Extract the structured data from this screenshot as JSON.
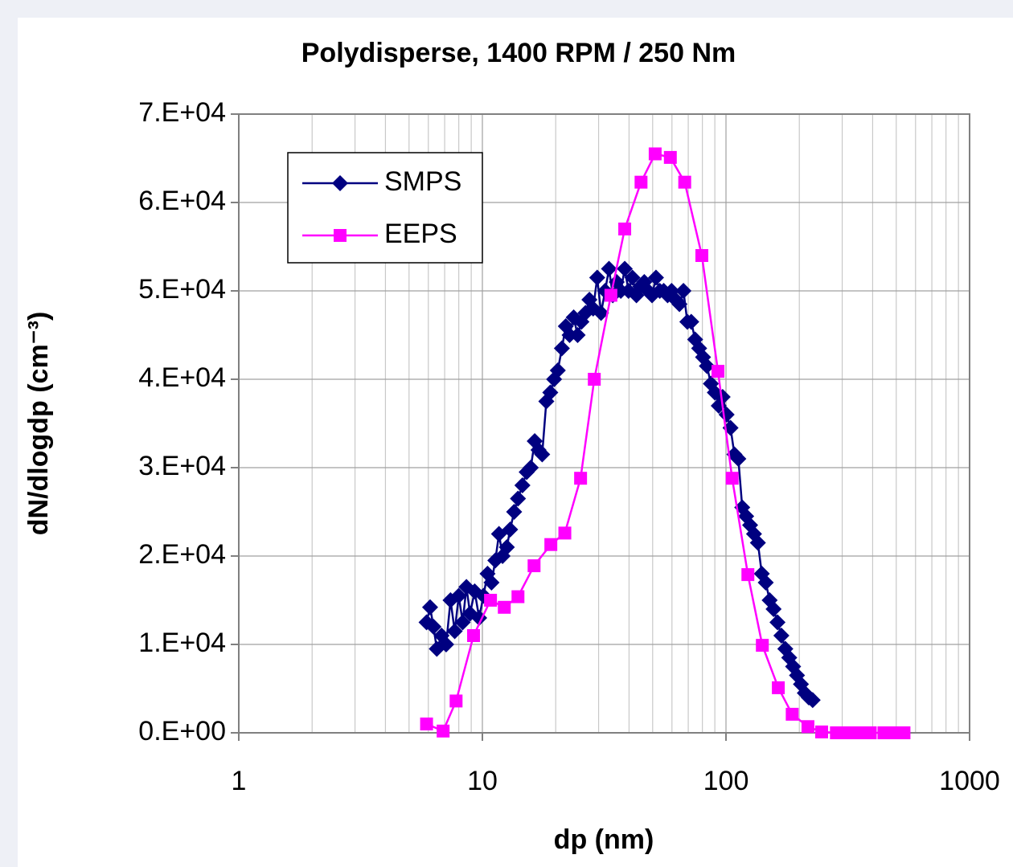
{
  "chart_data": {
    "type": "line",
    "title": "Polydisperse,  1400 RPM / 250 Nm",
    "xlabel": "dp (nm)",
    "ylabel": "dN/dlogdp (cm⁻³)",
    "xscale": "log",
    "xlim": [
      1,
      1000
    ],
    "xticks": [
      1,
      10,
      100,
      1000
    ],
    "ylim": [
      0,
      70000
    ],
    "yticks": [
      {
        "value": 0,
        "label": "0.E+00"
      },
      {
        "value": 10000,
        "label": "1.E+04"
      },
      {
        "value": 20000,
        "label": "2.E+04"
      },
      {
        "value": 30000,
        "label": "3.E+04"
      },
      {
        "value": 40000,
        "label": "4.E+04"
      },
      {
        "value": 50000,
        "label": "5.E+04"
      },
      {
        "value": 60000,
        "label": "6.E+04"
      },
      {
        "value": 70000,
        "label": "7.E+04"
      }
    ],
    "grid": true,
    "minor_grid": true,
    "legend": "upper left",
    "series": [
      {
        "name": "SMPS",
        "color": "#000080",
        "marker": "diamond",
        "x": [
          5.9,
          6.1,
          6.3,
          6.5,
          6.8,
          7.1,
          7.4,
          7.7,
          8.0,
          8.3,
          8.6,
          8.9,
          9.3,
          9.7,
          10.1,
          10.5,
          10.9,
          11.3,
          11.7,
          12.1,
          12.6,
          13.0,
          13.5,
          14.0,
          14.6,
          15.2,
          15.8,
          16.4,
          17.0,
          17.6,
          18.3,
          19.0,
          19.7,
          20.4,
          21.2,
          22.0,
          22.8,
          23.7,
          24.6,
          25.5,
          26.5,
          27.5,
          28.5,
          29.6,
          30.7,
          31.9,
          33.1,
          34.3,
          35.6,
          37.0,
          38.4,
          39.8,
          41.3,
          42.9,
          44.5,
          46.2,
          47.9,
          49.7,
          51.6,
          53.5,
          55.5,
          57.6,
          59.8,
          62.1,
          64.4,
          66.9,
          69.4,
          72.0,
          74.7,
          77.6,
          80.5,
          83.5,
          86.7,
          90.0,
          93.4,
          96.9,
          100.6,
          104.4,
          108.3,
          112.4,
          116.6,
          121.0,
          125.6,
          130.3,
          135.2,
          140.3,
          145.6,
          151.1,
          156.8,
          162.7,
          168.8,
          175.2,
          181.8,
          188.6,
          195.7,
          203.1,
          210.7,
          218.7,
          226.9
        ],
        "values": [
          12500,
          14200,
          12000,
          9500,
          11000,
          10000,
          15000,
          11500,
          15500,
          12500,
          16500,
          13500,
          16000,
          13000,
          15500,
          18000,
          17000,
          19500,
          22500,
          20000,
          21000,
          23000,
          25000,
          26500,
          28000,
          29500,
          30000,
          33000,
          32000,
          31500,
          37500,
          38500,
          40000,
          41000,
          43500,
          46000,
          45000,
          47000,
          45000,
          46500,
          47500,
          49000,
          48000,
          51500,
          47500,
          50000,
          52500,
          49500,
          51000,
          50000,
          52500,
          50000,
          51500,
          49500,
          50500,
          51000,
          50000,
          49500,
          51500,
          50000,
          50000,
          49500,
          50000,
          49000,
          48500,
          50000,
          46500,
          46500,
          44500,
          43500,
          42500,
          41500,
          39500,
          38500,
          37000,
          38000,
          36000,
          34500,
          31500,
          31000,
          25500,
          24500,
          23500,
          22500,
          21500,
          18000,
          17000,
          15000,
          14000,
          12500,
          11000,
          9500,
          8500,
          7500,
          6500,
          5500,
          4500,
          4000,
          3700
        ]
      },
      {
        "name": "EEPS",
        "color": "#ff00ff",
        "marker": "square",
        "x": [
          5.9,
          6.9,
          7.8,
          9.2,
          10.8,
          12.3,
          14.0,
          16.3,
          19.1,
          21.8,
          25.3,
          28.8,
          33.7,
          38.4,
          44.8,
          51.2,
          59.1,
          67.7,
          79.6,
          92.7,
          106,
          123,
          141,
          164,
          187,
          217,
          247,
          284,
          317,
          350,
          391,
          445,
          496,
          538
        ],
        "values": [
          1000,
          200,
          3600,
          11000,
          15000,
          14200,
          15400,
          18900,
          21300,
          22600,
          28800,
          40000,
          49500,
          57000,
          62300,
          65500,
          65100,
          62300,
          54000,
          40900,
          28800,
          17900,
          9900,
          5100,
          2100,
          700,
          100,
          0,
          0,
          0,
          0,
          0,
          0,
          0
        ]
      }
    ]
  }
}
